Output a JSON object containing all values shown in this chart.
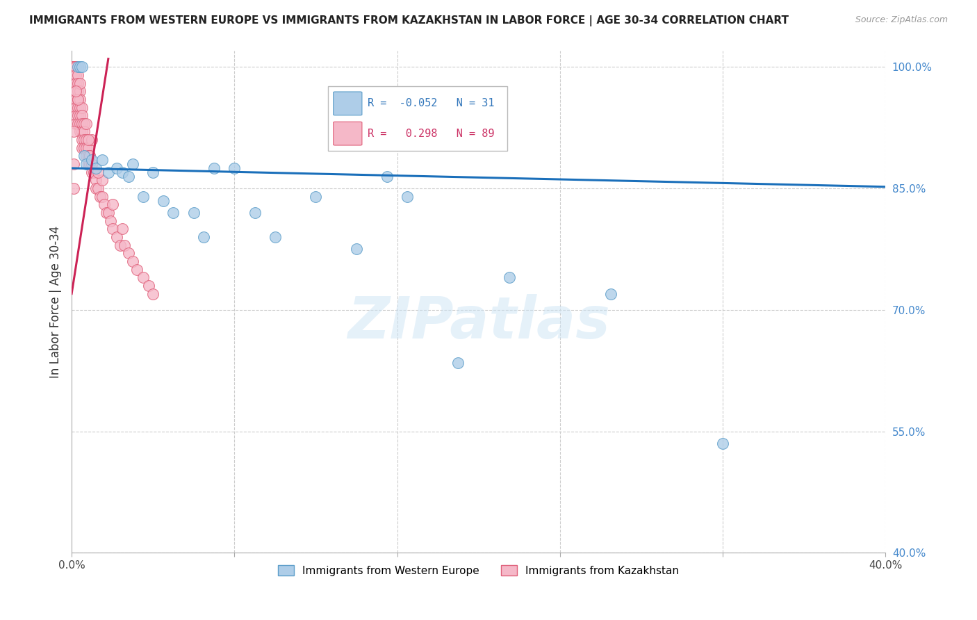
{
  "title": "IMMIGRANTS FROM WESTERN EUROPE VS IMMIGRANTS FROM KAZAKHSTAN IN LABOR FORCE | AGE 30-34 CORRELATION CHART",
  "source": "Source: ZipAtlas.com",
  "ylabel": "In Labor Force | Age 30-34",
  "xlim": [
    0.0,
    0.4
  ],
  "ylim": [
    0.4,
    1.02
  ],
  "xticks": [
    0.0,
    0.08,
    0.16,
    0.24,
    0.32,
    0.4
  ],
  "xtick_labels": [
    "0.0%",
    "",
    "",
    "",
    "",
    "40.0%"
  ],
  "ytick_labels_right": [
    "100.0%",
    "85.0%",
    "70.0%",
    "55.0%",
    "40.0%"
  ],
  "yticks_right": [
    1.0,
    0.85,
    0.7,
    0.55,
    0.4
  ],
  "blue_R": -0.052,
  "blue_N": 31,
  "pink_R": 0.298,
  "pink_N": 89,
  "blue_color": "#aecde8",
  "blue_edge": "#5b9dc9",
  "pink_color": "#f5b8c8",
  "pink_edge": "#e0607a",
  "blue_line_color": "#1a6fba",
  "pink_line_color": "#cc2255",
  "watermark": "ZIPatlas",
  "blue_scatter_x": [
    0.003,
    0.004,
    0.005,
    0.006,
    0.007,
    0.01,
    0.012,
    0.015,
    0.018,
    0.022,
    0.025,
    0.028,
    0.03,
    0.035,
    0.04,
    0.045,
    0.05,
    0.06,
    0.065,
    0.07,
    0.08,
    0.09,
    0.1,
    0.12,
    0.14,
    0.155,
    0.165,
    0.19,
    0.215,
    0.265,
    0.32
  ],
  "blue_scatter_y": [
    1.0,
    1.0,
    1.0,
    0.89,
    0.88,
    0.885,
    0.875,
    0.885,
    0.87,
    0.875,
    0.87,
    0.865,
    0.88,
    0.84,
    0.87,
    0.835,
    0.82,
    0.82,
    0.79,
    0.875,
    0.875,
    0.82,
    0.79,
    0.84,
    0.775,
    0.865,
    0.84,
    0.635,
    0.74,
    0.72,
    0.535
  ],
  "pink_scatter_x": [
    0.001,
    0.001,
    0.001,
    0.001,
    0.001,
    0.001,
    0.001,
    0.001,
    0.001,
    0.001,
    0.001,
    0.001,
    0.001,
    0.002,
    0.002,
    0.002,
    0.002,
    0.002,
    0.002,
    0.002,
    0.002,
    0.002,
    0.003,
    0.003,
    0.003,
    0.003,
    0.003,
    0.003,
    0.003,
    0.004,
    0.004,
    0.004,
    0.004,
    0.004,
    0.004,
    0.005,
    0.005,
    0.005,
    0.005,
    0.005,
    0.005,
    0.006,
    0.006,
    0.006,
    0.006,
    0.007,
    0.007,
    0.007,
    0.008,
    0.008,
    0.008,
    0.009,
    0.009,
    0.01,
    0.01,
    0.011,
    0.012,
    0.012,
    0.013,
    0.014,
    0.015,
    0.016,
    0.017,
    0.018,
    0.019,
    0.02,
    0.022,
    0.024,
    0.026,
    0.028,
    0.03,
    0.032,
    0.035,
    0.038,
    0.04,
    0.015,
    0.02,
    0.025,
    0.01,
    0.013,
    0.007,
    0.008,
    0.009,
    0.004,
    0.003,
    0.002,
    0.001,
    0.001,
    0.001
  ],
  "pink_scatter_y": [
    1.0,
    1.0,
    1.0,
    1.0,
    1.0,
    1.0,
    1.0,
    1.0,
    0.99,
    0.98,
    0.97,
    0.96,
    0.95,
    1.0,
    1.0,
    0.99,
    0.98,
    0.97,
    0.96,
    0.95,
    0.94,
    0.93,
    0.99,
    0.98,
    0.97,
    0.96,
    0.95,
    0.94,
    0.93,
    0.97,
    0.96,
    0.95,
    0.94,
    0.93,
    0.92,
    0.95,
    0.94,
    0.93,
    0.92,
    0.91,
    0.9,
    0.93,
    0.92,
    0.91,
    0.9,
    0.91,
    0.9,
    0.89,
    0.9,
    0.89,
    0.88,
    0.89,
    0.88,
    0.88,
    0.87,
    0.87,
    0.86,
    0.85,
    0.85,
    0.84,
    0.84,
    0.83,
    0.82,
    0.82,
    0.81,
    0.8,
    0.79,
    0.78,
    0.78,
    0.77,
    0.76,
    0.75,
    0.74,
    0.73,
    0.72,
    0.86,
    0.83,
    0.8,
    0.91,
    0.87,
    0.93,
    0.91,
    0.89,
    0.98,
    0.96,
    0.97,
    0.92,
    0.88,
    0.85
  ],
  "pink_line_x_start": 0.0,
  "pink_line_x_end": 0.018,
  "blue_line_x_start": 0.0,
  "blue_line_x_end": 0.4
}
